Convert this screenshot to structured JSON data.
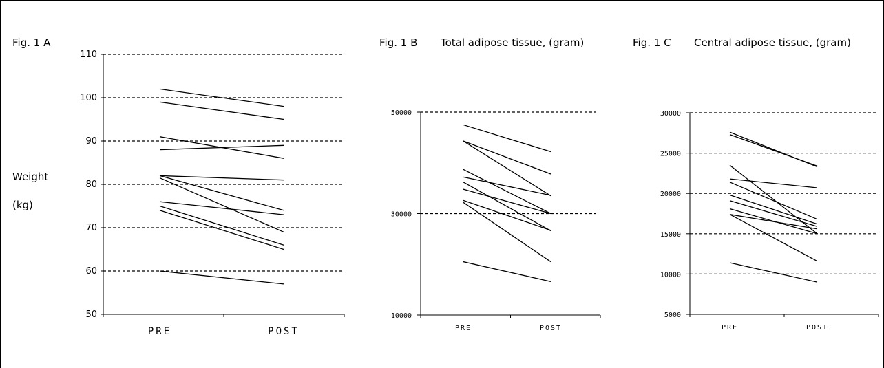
{
  "chart_data": [
    {
      "type": "line",
      "panel": "Fig. 1 A",
      "title": "",
      "ylabel": [
        "Weight",
        "(kg)"
      ],
      "categories": [
        "PRE",
        "POST"
      ],
      "ylim": [
        50,
        110
      ],
      "yticks": [
        50,
        60,
        70,
        80,
        90,
        100,
        110
      ],
      "grid": true,
      "series": [
        {
          "values": [
            102,
            98
          ]
        },
        {
          "values": [
            99,
            95
          ]
        },
        {
          "values": [
            91,
            86
          ]
        },
        {
          "values": [
            88,
            89
          ]
        },
        {
          "values": [
            82,
            81
          ]
        },
        {
          "values": [
            82,
            74
          ]
        },
        {
          "values": [
            81.5,
            69
          ]
        },
        {
          "values": [
            76,
            73
          ]
        },
        {
          "values": [
            75,
            66
          ]
        },
        {
          "values": [
            74,
            65
          ]
        },
        {
          "values": [
            60,
            57
          ]
        }
      ]
    },
    {
      "type": "line",
      "panel": "Fig. 1 B",
      "title": "Total adipose tissue, (gram)",
      "ylabel": [],
      "categories": [
        "PRE",
        "POST"
      ],
      "ylim": [
        10000,
        50000
      ],
      "yticks": [
        10000,
        30000,
        50000
      ],
      "grid": true,
      "series": [
        {
          "values": [
            47500,
            42200
          ]
        },
        {
          "values": [
            44300,
            37800
          ]
        },
        {
          "values": [
            44300,
            33500
          ]
        },
        {
          "values": [
            38700,
            30000
          ]
        },
        {
          "values": [
            37200,
            33600
          ]
        },
        {
          "values": [
            36200,
            26600
          ]
        },
        {
          "values": [
            34800,
            30000
          ]
        },
        {
          "values": [
            32600,
            26700
          ]
        },
        {
          "values": [
            32200,
            20500
          ]
        },
        {
          "values": [
            20500,
            16600
          ]
        }
      ]
    },
    {
      "type": "line",
      "panel": "Fig. 1 C",
      "title": "Central adipose tissue, (gram)",
      "ylabel": [],
      "categories": [
        "PRE",
        "POST"
      ],
      "ylim": [
        5000,
        30000
      ],
      "yticks": [
        5000,
        10000,
        15000,
        20000,
        25000,
        30000
      ],
      "grid": true,
      "series": [
        {
          "values": [
            27600,
            23300
          ]
        },
        {
          "values": [
            27300,
            23400
          ]
        },
        {
          "values": [
            23500,
            15000
          ]
        },
        {
          "values": [
            21800,
            20700
          ]
        },
        {
          "values": [
            21400,
            16800
          ]
        },
        {
          "values": [
            19800,
            16200
          ]
        },
        {
          "values": [
            19100,
            15900
          ]
        },
        {
          "values": [
            18100,
            15000
          ]
        },
        {
          "values": [
            17400,
            15600
          ]
        },
        {
          "values": [
            17400,
            11600
          ]
        },
        {
          "values": [
            11400,
            9000
          ]
        }
      ]
    }
  ]
}
